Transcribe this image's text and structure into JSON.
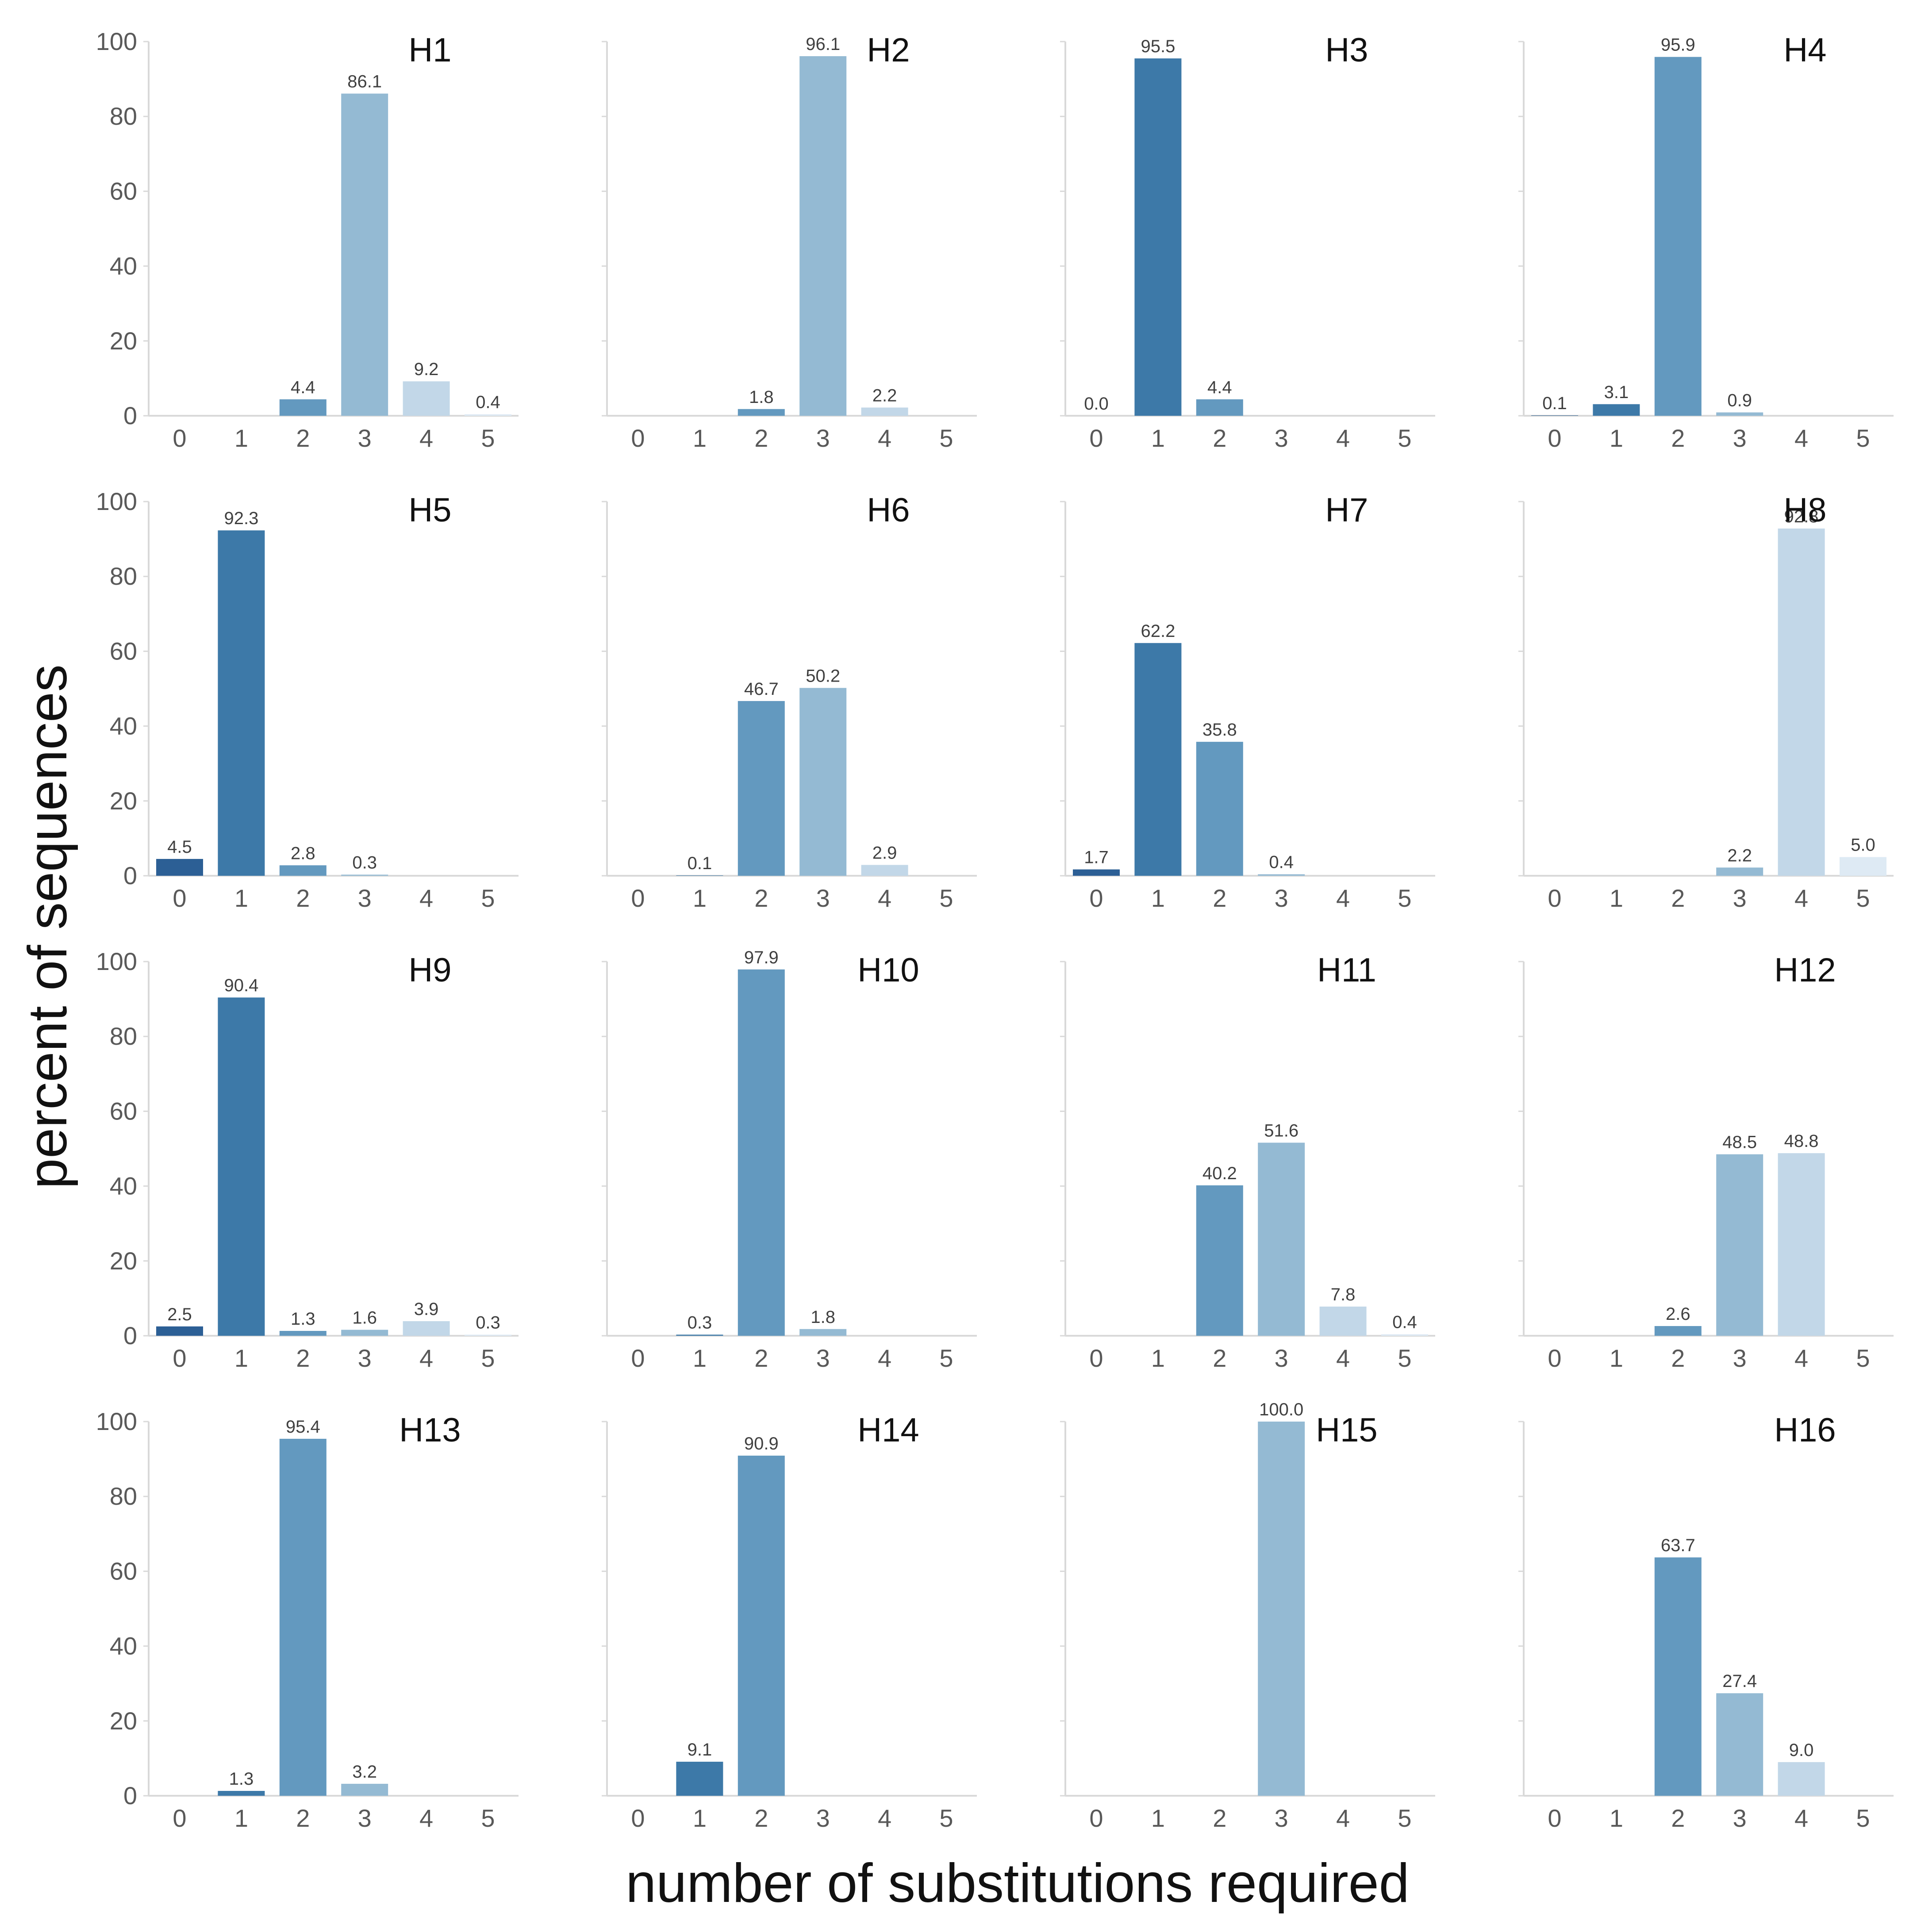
{
  "ylabel": "percent of sequences",
  "xlabel": "number of substitutions required",
  "colors": [
    "#2c5f95",
    "#3d79a8",
    "#6399bf",
    "#94bad3",
    "#c2d7e8",
    "#deeaf4"
  ],
  "chart_data": [
    {
      "type": "bar",
      "title": "H1",
      "categories": [
        "0",
        "1",
        "2",
        "3",
        "4",
        "5"
      ],
      "values": [
        null,
        null,
        4.4,
        86.1,
        9.2,
        0.4
      ],
      "labels": [
        "",
        "",
        "4.4",
        "86.1",
        "9.2",
        "0.4"
      ],
      "yticks": [
        "0",
        "20",
        "40",
        "60",
        "80",
        "100"
      ],
      "ylim": [
        0,
        100
      ]
    },
    {
      "type": "bar",
      "title": "H2",
      "categories": [
        "0",
        "1",
        "2",
        "3",
        "4",
        "5"
      ],
      "values": [
        null,
        null,
        1.8,
        96.1,
        2.2,
        null
      ],
      "labels": [
        "",
        "",
        "1.8",
        "96.1",
        "2.2",
        ""
      ],
      "yticks": [],
      "ylim": [
        0,
        100
      ]
    },
    {
      "type": "bar",
      "title": "H3",
      "categories": [
        "0",
        "1",
        "2",
        "3",
        "4",
        "5"
      ],
      "values": [
        0.0,
        95.5,
        4.4,
        null,
        null,
        null
      ],
      "labels": [
        "0.0",
        "95.5",
        "4.4",
        "",
        "",
        ""
      ],
      "yticks": [],
      "ylim": [
        0,
        100
      ]
    },
    {
      "type": "bar",
      "title": "H4",
      "categories": [
        "0",
        "1",
        "2",
        "3",
        "4",
        "5"
      ],
      "values": [
        0.1,
        3.1,
        95.9,
        0.9,
        null,
        null
      ],
      "labels": [
        "0.1",
        "3.1",
        "95.9",
        "0.9",
        "",
        ""
      ],
      "yticks": [],
      "ylim": [
        0,
        100
      ]
    },
    {
      "type": "bar",
      "title": "H5",
      "categories": [
        "0",
        "1",
        "2",
        "3",
        "4",
        "5"
      ],
      "values": [
        4.5,
        92.3,
        2.8,
        0.3,
        null,
        null
      ],
      "labels": [
        "4.5",
        "92.3",
        "2.8",
        "0.3",
        "",
        ""
      ],
      "yticks": [
        "0",
        "20",
        "40",
        "60",
        "80",
        "100"
      ],
      "ylim": [
        0,
        100
      ]
    },
    {
      "type": "bar",
      "title": "H6",
      "categories": [
        "0",
        "1",
        "2",
        "3",
        "4",
        "5"
      ],
      "values": [
        null,
        0.1,
        46.7,
        50.2,
        2.9,
        null
      ],
      "labels": [
        "",
        "0.1",
        "46.7",
        "50.2",
        "2.9",
        ""
      ],
      "yticks": [],
      "ylim": [
        0,
        100
      ]
    },
    {
      "type": "bar",
      "title": "H7",
      "categories": [
        "0",
        "1",
        "2",
        "3",
        "4",
        "5"
      ],
      "values": [
        1.7,
        62.2,
        35.8,
        0.4,
        null,
        null
      ],
      "labels": [
        "1.7",
        "62.2",
        "35.8",
        "0.4",
        "",
        ""
      ],
      "yticks": [],
      "ylim": [
        0,
        100
      ]
    },
    {
      "type": "bar",
      "title": "H8",
      "categories": [
        "0",
        "1",
        "2",
        "3",
        "4",
        "5"
      ],
      "values": [
        null,
        null,
        null,
        2.2,
        92.8,
        5.0
      ],
      "labels": [
        "",
        "",
        "",
        "2.2",
        "92.8",
        "5.0"
      ],
      "yticks": [],
      "ylim": [
        0,
        100
      ]
    },
    {
      "type": "bar",
      "title": "H9",
      "categories": [
        "0",
        "1",
        "2",
        "3",
        "4",
        "5"
      ],
      "values": [
        2.5,
        90.4,
        1.3,
        1.6,
        3.9,
        0.3
      ],
      "labels": [
        "2.5",
        "90.4",
        "1.3",
        "1.6",
        "3.9",
        "0.3"
      ],
      "yticks": [
        "0",
        "20",
        "40",
        "60",
        "80",
        "100"
      ],
      "ylim": [
        0,
        100
      ]
    },
    {
      "type": "bar",
      "title": "H10",
      "categories": [
        "0",
        "1",
        "2",
        "3",
        "4",
        "5"
      ],
      "values": [
        null,
        0.3,
        97.9,
        1.8,
        null,
        null
      ],
      "labels": [
        "",
        "0.3",
        "97.9",
        "1.8",
        "",
        ""
      ],
      "yticks": [],
      "ylim": [
        0,
        100
      ]
    },
    {
      "type": "bar",
      "title": "H11",
      "categories": [
        "0",
        "1",
        "2",
        "3",
        "4",
        "5"
      ],
      "values": [
        null,
        null,
        40.2,
        51.6,
        7.8,
        0.4
      ],
      "labels": [
        "",
        "",
        "40.2",
        "51.6",
        "7.8",
        "0.4"
      ],
      "yticks": [],
      "ylim": [
        0,
        100
      ]
    },
    {
      "type": "bar",
      "title": "H12",
      "categories": [
        "0",
        "1",
        "2",
        "3",
        "4",
        "5"
      ],
      "values": [
        null,
        null,
        2.6,
        48.5,
        48.8,
        null
      ],
      "labels": [
        "",
        "",
        "2.6",
        "48.5",
        "48.8",
        ""
      ],
      "yticks": [],
      "ylim": [
        0,
        100
      ]
    },
    {
      "type": "bar",
      "title": "H13",
      "categories": [
        "0",
        "1",
        "2",
        "3",
        "4",
        "5"
      ],
      "values": [
        null,
        1.3,
        95.4,
        3.2,
        null,
        null
      ],
      "labels": [
        "",
        "1.3",
        "95.4",
        "3.2",
        "",
        ""
      ],
      "yticks": [
        "0",
        "20",
        "40",
        "60",
        "80",
        "100"
      ],
      "ylim": [
        0,
        100
      ]
    },
    {
      "type": "bar",
      "title": "H14",
      "categories": [
        "0",
        "1",
        "2",
        "3",
        "4",
        "5"
      ],
      "values": [
        null,
        9.1,
        90.9,
        null,
        null,
        null
      ],
      "labels": [
        "",
        "9.1",
        "90.9",
        "",
        "",
        ""
      ],
      "yticks": [],
      "ylim": [
        0,
        100
      ]
    },
    {
      "type": "bar",
      "title": "H15",
      "categories": [
        "0",
        "1",
        "2",
        "3",
        "4",
        "5"
      ],
      "values": [
        null,
        null,
        null,
        100.0,
        null,
        null
      ],
      "labels": [
        "",
        "",
        "",
        "100.0",
        "",
        ""
      ],
      "yticks": [],
      "ylim": [
        0,
        100
      ]
    },
    {
      "type": "bar",
      "title": "H16",
      "categories": [
        "0",
        "1",
        "2",
        "3",
        "4",
        "5"
      ],
      "values": [
        null,
        null,
        63.7,
        27.4,
        9.0,
        null
      ],
      "labels": [
        "",
        "",
        "63.7",
        "27.4",
        "9.0",
        ""
      ],
      "yticks": [],
      "ylim": [
        0,
        100
      ]
    }
  ]
}
